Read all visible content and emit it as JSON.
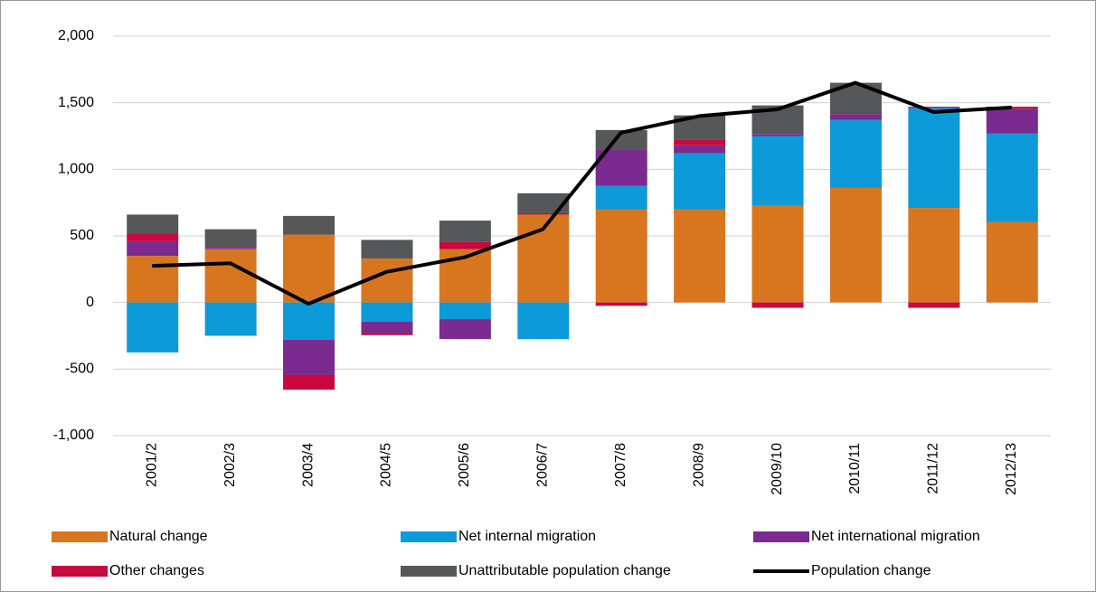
{
  "chart_data": {
    "type": "stacked-bar-line",
    "categories": [
      "2001/2",
      "2002/3",
      "2003/4",
      "2004/5",
      "2005/6",
      "2006/7",
      "2007/8",
      "2008/9",
      "2009/10",
      "2010/11",
      "2011/12",
      "2012/13"
    ],
    "series": [
      {
        "name": "Natural change",
        "color": "#d8761f",
        "values": [
          350,
          400,
          510,
          330,
          400,
          660,
          700,
          700,
          725,
          860,
          710,
          605
        ]
      },
      {
        "name": "Net internal migration",
        "color": "#0d9ad8",
        "values": [
          -375,
          -250,
          -280,
          -145,
          -125,
          -275,
          175,
          420,
          525,
          510,
          750,
          665
        ]
      },
      {
        "name": "Net international migration",
        "color": "#7b2a8f",
        "values": [
          110,
          10,
          -265,
          -85,
          -150,
          0,
          270,
          60,
          15,
          45,
          10,
          185
        ]
      },
      {
        "name": "Other changes",
        "color": "#c8083e",
        "values": [
          60,
          5,
          -110,
          -15,
          55,
          10,
          -25,
          45,
          -40,
          5,
          -40,
          15
        ]
      },
      {
        "name": "Unattributable population change",
        "color": "#555759",
        "values": [
          140,
          135,
          140,
          140,
          160,
          150,
          150,
          180,
          215,
          230,
          0,
          0
        ]
      },
      {
        "name": "Population change",
        "color": "#000000",
        "kind": "line",
        "values": [
          275,
          295,
          -10,
          230,
          340,
          550,
          1275,
          1400,
          1450,
          1650,
          1430,
          1465
        ]
      }
    ],
    "ylim": [
      -1000,
      2000
    ],
    "yticks": [
      {
        "value": -1000,
        "label": "-1,000"
      },
      {
        "value": -500,
        "label": "-500"
      },
      0,
      500,
      {
        "value": 1000,
        "label": "1,000"
      },
      {
        "value": 1500,
        "label": "1,500"
      },
      {
        "value": 2000,
        "label": "2,000"
      }
    ],
    "grid": true
  }
}
